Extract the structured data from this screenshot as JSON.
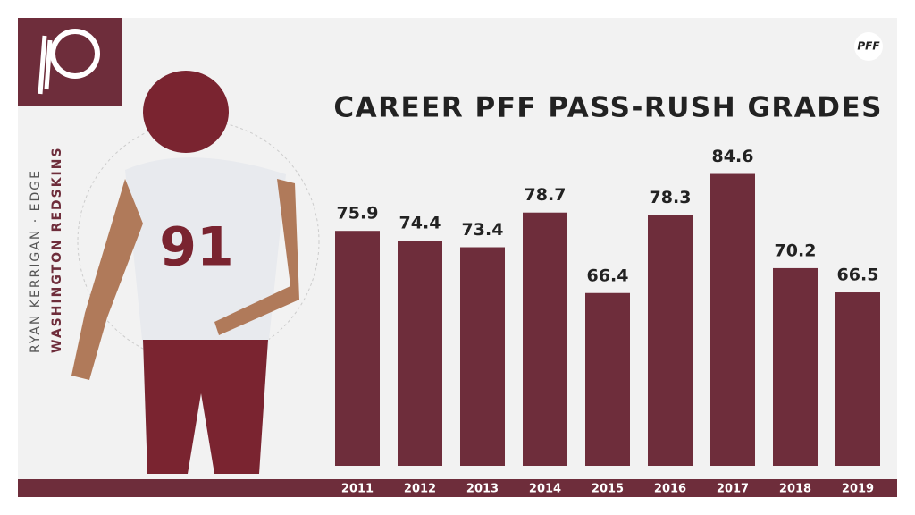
{
  "chart_data": {
    "type": "bar",
    "title": "CAREER PFF PASS-RUSH GRADES",
    "annotations": [
      "RYAN KERRIGAN · EDGE",
      "WASHINGTON REDSKINS",
      "PFF"
    ],
    "categories": [
      "2011",
      "2012",
      "2013",
      "2014",
      "2015",
      "2016",
      "2017",
      "2018",
      "2019"
    ],
    "values": [
      75.9,
      74.4,
      73.4,
      78.7,
      66.4,
      78.3,
      84.6,
      70.2,
      66.5
    ],
    "color": "#6e2d3b",
    "ylim": [
      40,
      90
    ]
  }
}
